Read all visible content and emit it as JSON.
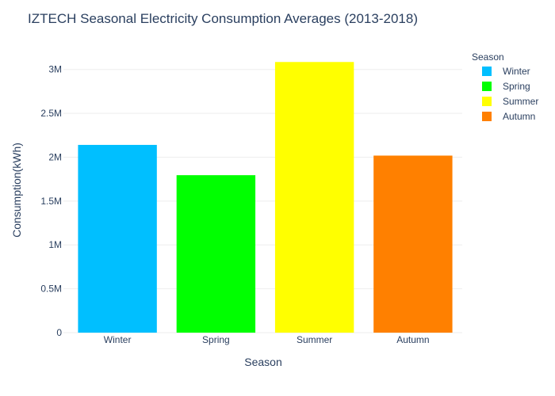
{
  "chart_data": {
    "type": "bar",
    "title": "IZTECH Seasonal Electricity Consumption Averages (2013-2018)",
    "xlabel": "Season",
    "ylabel": "Consumption(kWh)",
    "categories": [
      "Winter",
      "Spring",
      "Summer",
      "Autumn"
    ],
    "values": [
      2140000,
      1795000,
      3085000,
      2018000
    ],
    "colors": [
      "#00bfff",
      "#00ff00",
      "#ffff00",
      "#ff8000"
    ],
    "ylim": [
      0,
      3250000
    ],
    "yticks": [
      0,
      500000,
      1000000,
      1500000,
      2000000,
      2500000,
      3000000
    ],
    "ytick_labels": [
      "0",
      "0.5M",
      "1M",
      "1.5M",
      "2M",
      "2.5M",
      "3M"
    ],
    "grid": true,
    "legend": {
      "title": "Season",
      "position": "right",
      "entries": [
        "Winter",
        "Spring",
        "Summer",
        "Autumn"
      ]
    }
  }
}
